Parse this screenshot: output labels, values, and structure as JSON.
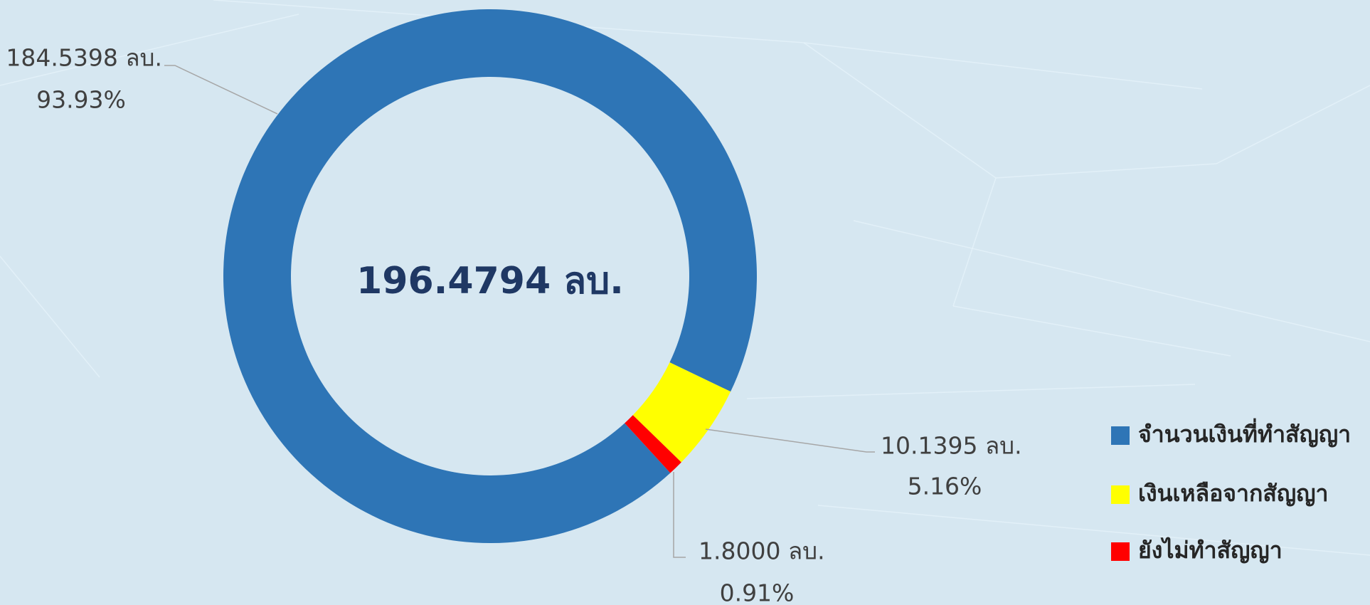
{
  "chart_data": {
    "type": "donut",
    "center_label": "196.4794 ลบ.",
    "categories": [
      "จำนวนเงินที่ทำสัญญา",
      "เงินเหลือจากสัญญา",
      "ยังไม่ทำสัญญา"
    ],
    "values": [
      184.5398,
      10.1395,
      1.8
    ],
    "value_labels": [
      "184.5398 ลบ.",
      "10.1395 ลบ.",
      "1.8000 ลบ."
    ],
    "percents": [
      93.93,
      5.16,
      0.91
    ],
    "percent_labels": [
      "93.93%",
      "5.16%",
      "0.91%"
    ],
    "colors": [
      "#2e75b6",
      "#ffff00",
      "#ff0000"
    ],
    "legend": "bottom-right"
  }
}
